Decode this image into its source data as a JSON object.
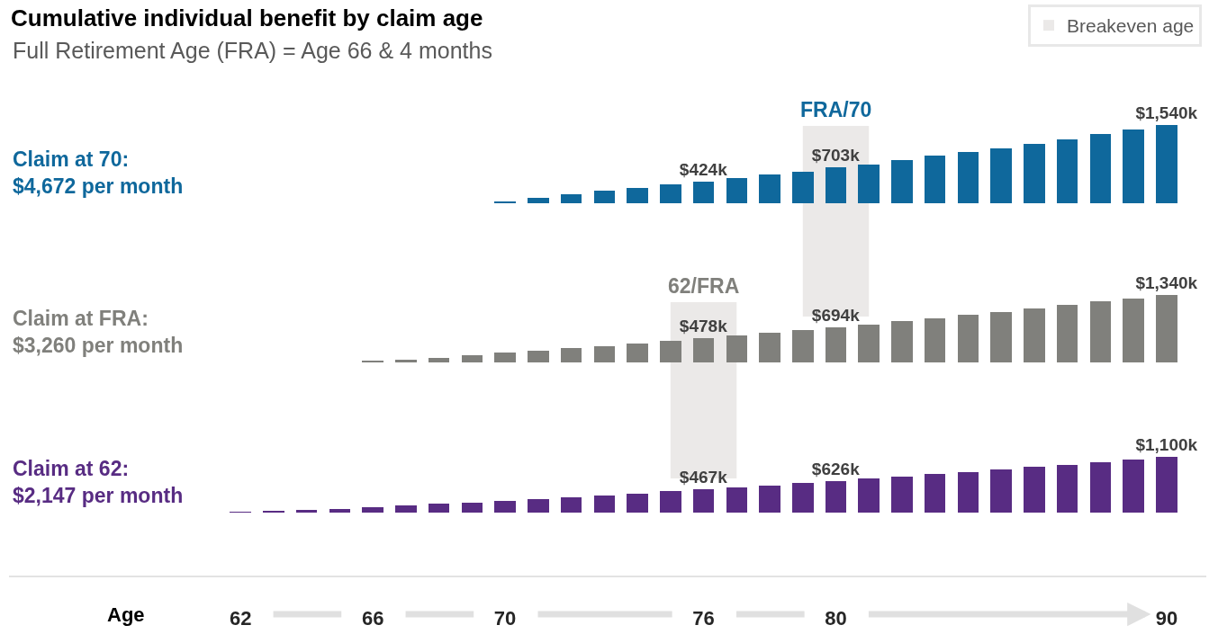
{
  "chart_data": [
    {
      "type": "bar",
      "title": "Cumulative individual benefit by claim age",
      "subtitle": "Full Retirement Age (FRA) = Age 66 & 4 months",
      "legend": "top right",
      "x": [
        70,
        71,
        72,
        73,
        74,
        75,
        76,
        77,
        78,
        79,
        80,
        81,
        82,
        83,
        84,
        85,
        86,
        87,
        88,
        89,
        90
      ],
      "series": [
        {
          "name": "Claim at 70:\n$4,672 per month",
          "color": "#0f689c",
          "values": [
            40,
            110,
            170,
            240,
            300,
            370,
            424,
            490,
            560,
            630,
            703,
            770,
            860,
            940,
            1010,
            1090,
            1180,
            1270,
            1360,
            1460,
            1540
          ],
          "value_labels": [
            null,
            null,
            null,
            null,
            null,
            null,
            "$424k",
            null,
            null,
            null,
            "$703k",
            null,
            null,
            null,
            null,
            null,
            null,
            null,
            null,
            null,
            "$1,540k"
          ]
        }
      ],
      "xlim": [
        55,
        91.2
      ],
      "tick_labels": false,
      "bands": [
        {
          "axis": "x",
          "from": 79,
          "to": 81,
          "label": "Breakeven age",
          "color": "#ebe9e8"
        }
      ],
      "annotations": [
        "FRA/70"
      ]
    },
    {
      "type": "bar",
      "x": [
        66,
        67,
        68,
        69,
        70,
        71,
        72,
        73,
        74,
        75,
        76,
        77,
        78,
        79,
        80,
        81,
        82,
        83,
        84,
        85,
        86,
        87,
        88,
        89,
        90
      ],
      "series": [
        {
          "name": "Claim at FRA:\n$3,260 per month",
          "color": "#80807c",
          "values": [
            20,
            60,
            90,
            140,
            190,
            230,
            280,
            320,
            370,
            430,
            478,
            530,
            580,
            640,
            694,
            750,
            810,
            870,
            940,
            1000,
            1070,
            1130,
            1200,
            1270,
            1340
          ],
          "value_labels": [
            null,
            null,
            null,
            null,
            null,
            null,
            null,
            null,
            null,
            null,
            "$478k",
            null,
            null,
            null,
            "$694k",
            null,
            null,
            null,
            null,
            null,
            null,
            null,
            null,
            null,
            "$1,340k"
          ]
        }
      ],
      "xlim": [
        55,
        91.2
      ],
      "tick_labels": false,
      "bands": [
        {
          "axis": "x",
          "from": 75,
          "to": 77,
          "color": "#ebe9e8"
        }
      ],
      "annotations": [
        "62/FRA"
      ]
    },
    {
      "type": "bar",
      "xlabel": "Age",
      "x": [
        62,
        63,
        64,
        65,
        66,
        67,
        68,
        69,
        70,
        71,
        72,
        73,
        74,
        75,
        76,
        77,
        78,
        79,
        80,
        81,
        82,
        83,
        84,
        85,
        86,
        87,
        88,
        89,
        90
      ],
      "series": [
        {
          "name": "Claim at 62:\n$2,147 per month",
          "color": "#582c83",
          "values": [
            10,
            30,
            50,
            80,
            110,
            140,
            170,
            200,
            230,
            270,
            310,
            340,
            380,
            420,
            467,
            500,
            540,
            580,
            626,
            670,
            710,
            760,
            800,
            850,
            900,
            950,
            1000,
            1050,
            1100
          ],
          "value_labels": [
            null,
            null,
            null,
            null,
            null,
            null,
            null,
            null,
            null,
            null,
            null,
            null,
            null,
            null,
            "$467k",
            null,
            null,
            null,
            "$626k",
            null,
            null,
            null,
            null,
            null,
            null,
            null,
            null,
            null,
            "$1,100k"
          ]
        }
      ],
      "xlim": [
        55,
        91.2
      ],
      "xticks": [
        62,
        66,
        70,
        76,
        80,
        90
      ],
      "tick_labels": "x"
    }
  ]
}
